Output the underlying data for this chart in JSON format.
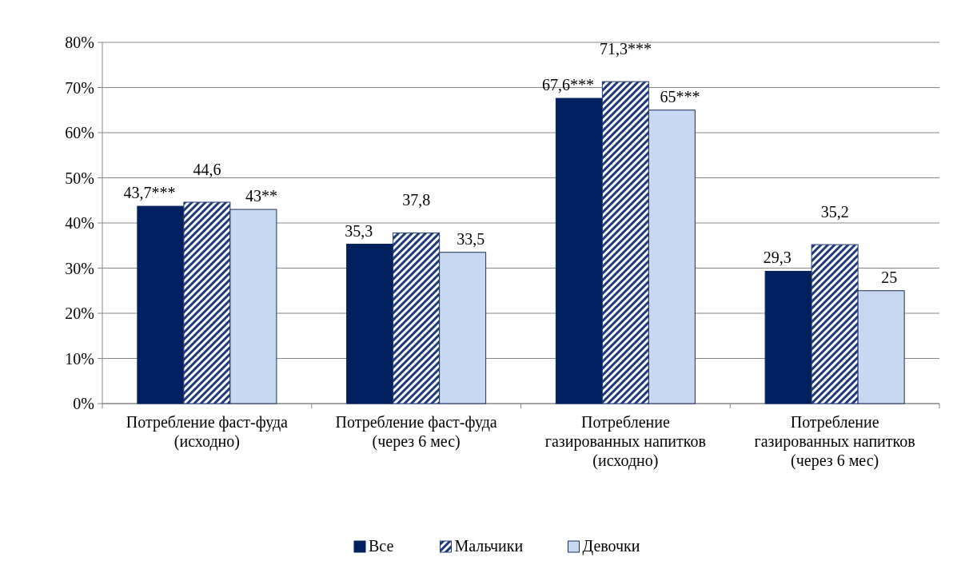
{
  "chart_data": {
    "type": "bar",
    "categories": [
      "Потребление фаст-фуда (исходно)",
      "Потребление фаст-фуда (через 6 мес)",
      "Потребление газированных напитков (исходно)",
      "Потребление газированных напитков (через 6 мес)"
    ],
    "series": [
      {
        "name": "Все",
        "color": "#002060",
        "values": [
          43.7,
          35.3,
          67.6,
          29.3
        ],
        "value_labels": [
          "43,7***",
          "35,3",
          "67,6***",
          "29,3"
        ]
      },
      {
        "name": "Мальчики",
        "color": "#1f3a78",
        "values": [
          44.6,
          37.8,
          71.3,
          35.2
        ],
        "value_labels": [
          "44,6",
          "37,8",
          "71,3***",
          "35,2"
        ]
      },
      {
        "name": "Девочки",
        "color": "#c6d9f1",
        "values": [
          43,
          33.5,
          65,
          25
        ],
        "value_labels": [
          "43**",
          "33,5",
          "65***",
          "25"
        ]
      }
    ],
    "ylim": [
      0,
      80
    ],
    "yticks": [
      {
        "value": 0,
        "label": "0%"
      },
      {
        "value": 10,
        "label": "10%"
      },
      {
        "value": 20,
        "label": "20%"
      },
      {
        "value": 30,
        "label": "30%"
      },
      {
        "value": 40,
        "label": "40%"
      },
      {
        "value": 50,
        "label": "50%"
      },
      {
        "value": 60,
        "label": "60%"
      },
      {
        "value": 70,
        "label": "70%"
      },
      {
        "value": 80,
        "label": "80%"
      }
    ],
    "grid": "y",
    "legend": "bottom"
  }
}
